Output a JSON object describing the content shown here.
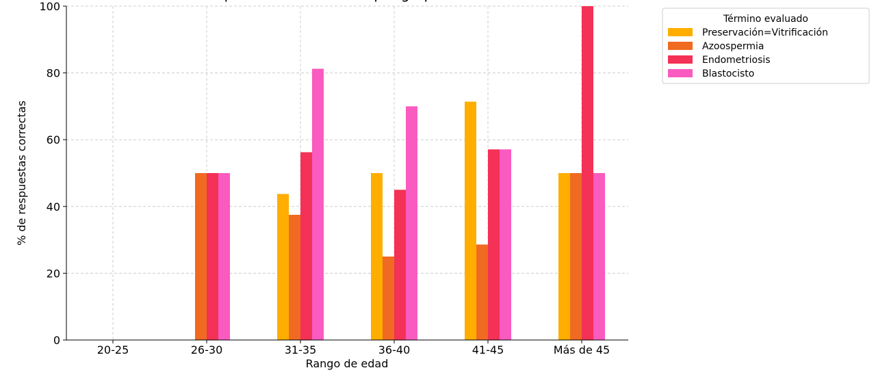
{
  "chart_data": {
    "type": "bar",
    "title": "Comprensión de términos por grupo de edad",
    "xlabel": "Rango de edad",
    "ylabel": "% de respuestas correctas",
    "ylim": [
      0,
      100
    ],
    "yticks": [
      "0",
      "20",
      "40",
      "60",
      "80",
      "100"
    ],
    "grid": true,
    "legend_title": "Término evaluado",
    "legend_placement": "outside-top-right",
    "categories": [
      "20-25",
      "26-30",
      "31-35",
      "36-40",
      "41-45",
      "Más de 45"
    ],
    "series": [
      {
        "name": "Preservación=Vitrificación",
        "color": "#FFAE00",
        "values": [
          0,
          0,
          43.75,
          50,
          71.4,
          50
        ]
      },
      {
        "name": "Azoospermia",
        "color": "#F06A22",
        "values": [
          0,
          50,
          37.5,
          25,
          28.6,
          50
        ]
      },
      {
        "name": "Endometriosis",
        "color": "#F43156",
        "values": [
          0,
          50,
          56.25,
          45,
          57.1,
          100
        ]
      },
      {
        "name": "Blastocisto",
        "color": "#F95BC0",
        "values": [
          0,
          50,
          81.25,
          70,
          57.1,
          50
        ]
      }
    ]
  }
}
